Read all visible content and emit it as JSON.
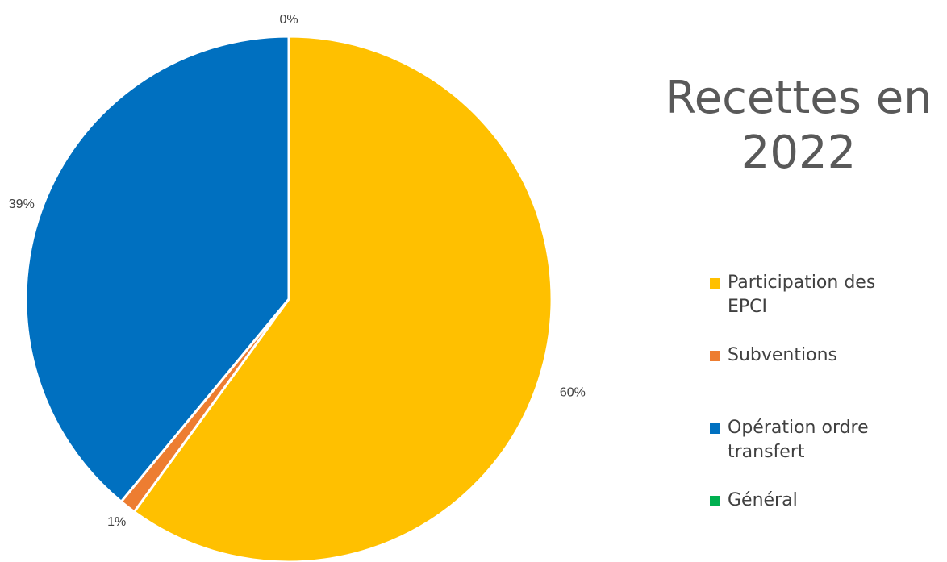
{
  "chart_data": {
    "type": "pie",
    "title": "Recettes en 2022",
    "title_lines": [
      "Recettes en",
      "2022"
    ],
    "categories": [
      "Participation des EPCI",
      "Subventions",
      "Opération ordre transfert",
      "Général"
    ],
    "values": [
      60,
      1,
      39,
      0
    ],
    "labels": [
      "60%",
      "1%",
      "39%",
      "0%"
    ],
    "colors": [
      "#FFC000",
      "#ED7D31",
      "#0070C0",
      "#00B050"
    ],
    "legend_position": "right",
    "legend": [
      {
        "lines": [
          "Participation des",
          "EPCI"
        ],
        "color": "#FFC000"
      },
      {
        "lines": [
          "Subventions"
        ],
        "color": "#ED7D31"
      },
      {
        "lines": [
          "Opération ordre",
          "transfert"
        ],
        "color": "#0070C0"
      },
      {
        "lines": [
          "Général"
        ],
        "color": "#00B050"
      }
    ]
  }
}
